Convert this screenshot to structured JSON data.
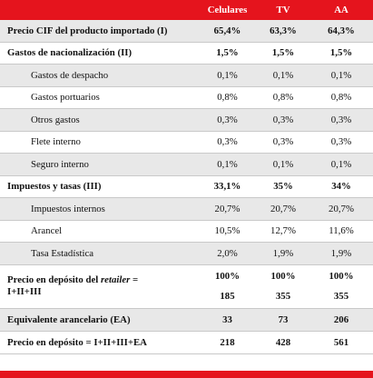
{
  "table": {
    "headers": [
      "",
      "Celulares",
      "TV",
      "AA"
    ],
    "rows": [
      {
        "label": "Precio CIF del producto importado (I)",
        "v": [
          "65,4%",
          "63,3%",
          "64,3%"
        ],
        "bold": true,
        "sub": false,
        "stripe": true
      },
      {
        "label": "Gastos de nacionalización (II)",
        "v": [
          "1,5%",
          "1,5%",
          "1,5%"
        ],
        "bold": true,
        "sub": false,
        "stripe": false
      },
      {
        "label": "Gastos de despacho",
        "v": [
          "0,1%",
          "0,1%",
          "0,1%"
        ],
        "bold": false,
        "sub": true,
        "stripe": true
      },
      {
        "label": "Gastos portuarios",
        "v": [
          "0,8%",
          "0,8%",
          "0,8%"
        ],
        "bold": false,
        "sub": true,
        "stripe": false
      },
      {
        "label": "Otros gastos",
        "v": [
          "0,3%",
          "0,3%",
          "0,3%"
        ],
        "bold": false,
        "sub": true,
        "stripe": true
      },
      {
        "label": "Flete interno",
        "v": [
          "0,3%",
          "0,3%",
          "0,3%"
        ],
        "bold": false,
        "sub": true,
        "stripe": false
      },
      {
        "label": "Seguro interno",
        "v": [
          "0,1%",
          "0,1%",
          "0,1%"
        ],
        "bold": false,
        "sub": true,
        "stripe": true
      },
      {
        "label": "Impuestos y tasas (III)",
        "v": [
          "33,1%",
          "35%",
          "34%"
        ],
        "bold": true,
        "sub": false,
        "stripe": false
      },
      {
        "label": "Impuestos internos",
        "v": [
          "20,7%",
          "20,7%",
          "20,7%"
        ],
        "bold": false,
        "sub": true,
        "stripe": true
      },
      {
        "label": "Arancel",
        "v": [
          "10,5%",
          "12,7%",
          "11,6%"
        ],
        "bold": false,
        "sub": true,
        "stripe": false
      },
      {
        "label": "Tasa Estadística",
        "v": [
          "2,0%",
          "1,9%",
          "1,9%"
        ],
        "bold": false,
        "sub": true,
        "stripe": true
      }
    ],
    "deposit_row": {
      "label_prefix": "Precio en depósito del ",
      "label_italic": "retailer",
      "label_suffix": " =",
      "label_line2": "I+II+III",
      "pct": [
        "100%",
        "100%",
        "100%"
      ],
      "abs": [
        "185",
        "355",
        "355"
      ]
    },
    "tail_rows": [
      {
        "label": "Equivalente arancelario (EA)",
        "v": [
          "33",
          "73",
          "206"
        ],
        "stripe": true
      },
      {
        "label": "Precio en depósito = I+II+III+EA",
        "v": [
          "218",
          "428",
          "561"
        ],
        "stripe": false
      }
    ]
  },
  "colors": {
    "accent": "#e5141d",
    "stripe": "#e8e8e8"
  }
}
